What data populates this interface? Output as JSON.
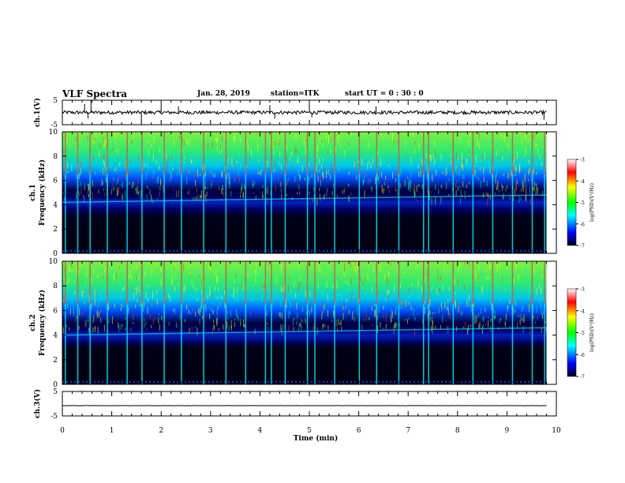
{
  "header": {
    "title": "VLF Spectra",
    "date": "Jan. 28, 2019",
    "station": "station=ITK",
    "start": "start UT = 0 : 30 : 0"
  },
  "colors": {
    "spectrogram_scale": [
      "#00002a",
      "#0000ff",
      "#00ffff",
      "#00ff00",
      "#ffff00",
      "#ff0000",
      "#ffffff"
    ],
    "trace": "#000000"
  },
  "chart_data": [
    {
      "type": "line",
      "name": "channel-1-waveform",
      "ylabel": "ch.1(V)",
      "xlim": [
        0,
        10
      ],
      "ylim": [
        -5,
        5
      ],
      "yticks": [
        "5",
        "-5"
      ],
      "baseline": 0,
      "noise_amplitude": 0.7,
      "spikes": [
        {
          "x": 0.45,
          "y": 3.5
        },
        {
          "x": 0.52,
          "y": -2.5
        },
        {
          "x": 0.58,
          "y": 5.0
        },
        {
          "x": 1.6,
          "y": -4.5
        },
        {
          "x": 2.0,
          "y": 3.0
        },
        {
          "x": 2.35,
          "y": 2.5
        },
        {
          "x": 4.2,
          "y": 3.0
        },
        {
          "x": 4.3,
          "y": -2.5
        },
        {
          "x": 5.0,
          "y": 4.5
        },
        {
          "x": 5.05,
          "y": -2.0
        },
        {
          "x": 6.35,
          "y": 2.5
        },
        {
          "x": 9.75,
          "y": -3.0
        }
      ]
    },
    {
      "type": "heatmap",
      "name": "channel-1-spectrogram",
      "ylabel": "ch.1\nFrequency (kHz)",
      "xlim": [
        0,
        10
      ],
      "ylim": [
        0,
        10
      ],
      "yticks": [
        "0",
        "2",
        "4",
        "6",
        "8",
        "10"
      ],
      "colorbar": {
        "label": "log(PSD)(V²/Hz)",
        "range": [
          -7,
          -3
        ],
        "ticks": [
          "-3",
          "-4",
          "-5",
          "-6",
          "-7"
        ]
      },
      "band_edge_khz": 4.2,
      "band_edge_end_khz": 4.8,
      "bright_streaks_min": [
        0.05,
        0.3,
        0.55,
        0.9,
        1.3,
        1.6,
        2.05,
        2.4,
        2.85,
        3.3,
        3.7,
        4.1,
        4.22,
        4.5,
        4.95,
        5.1,
        5.5,
        6.0,
        6.35,
        6.8,
        7.3,
        7.4,
        7.9,
        8.3,
        8.7,
        9.1,
        9.5,
        9.75
      ]
    },
    {
      "type": "heatmap",
      "name": "channel-2-spectrogram",
      "ylabel": "ch.2\nFrequency (kHz)",
      "xlim": [
        0,
        10
      ],
      "ylim": [
        0,
        10
      ],
      "yticks": [
        "0",
        "2",
        "4",
        "6",
        "8",
        "10"
      ],
      "colorbar": {
        "label": "log(PSD)(V²/Hz)",
        "range": [
          -7,
          -3
        ],
        "ticks": [
          "-3",
          "-4",
          "-5",
          "-6",
          "-7"
        ]
      },
      "band_edge_khz": 4.0,
      "band_edge_end_khz": 4.6,
      "bright_streaks_min": [
        0.05,
        0.3,
        0.55,
        0.9,
        1.3,
        1.6,
        2.05,
        2.4,
        2.85,
        3.3,
        3.7,
        4.1,
        4.22,
        4.5,
        4.95,
        5.1,
        5.5,
        6.0,
        6.35,
        6.8,
        7.3,
        7.4,
        7.9,
        8.3,
        8.7,
        9.1,
        9.5,
        9.75
      ]
    },
    {
      "type": "line",
      "name": "channel-3-waveform",
      "ylabel": "ch.3(V)",
      "xlim": [
        0,
        10
      ],
      "ylim": [
        -5,
        5
      ],
      "yticks": [
        "5",
        "-5"
      ],
      "baseline": -0.8,
      "noise_amplitude": 0.05,
      "spikes": []
    }
  ],
  "x_axis": {
    "label": "Time (min)",
    "ticks": [
      "0",
      "1",
      "2",
      "3",
      "4",
      "5",
      "6",
      "7",
      "8",
      "9",
      "10"
    ],
    "data_end": 9.8
  }
}
